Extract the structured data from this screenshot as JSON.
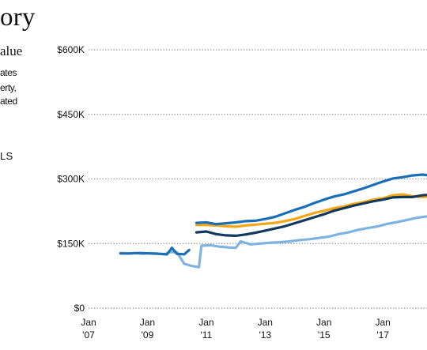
{
  "header": {
    "title_fragment": "ory",
    "subtitle_fragment": "alue",
    "description_lines": [
      "ates",
      "erty,",
      "ated"
    ],
    "legend_fragment": "LS"
  },
  "chart_data": {
    "type": "line",
    "title": "",
    "xlabel": "",
    "ylabel": "",
    "ylim": [
      0,
      600000
    ],
    "xlim": [
      "2007-01",
      "2018-07"
    ],
    "y_ticks": [
      {
        "value": 600000,
        "label": "$600K"
      },
      {
        "value": 450000,
        "label": "$450K"
      },
      {
        "value": 300000,
        "label": "$300K"
      },
      {
        "value": 150000,
        "label": "$150K"
      },
      {
        "value": 0,
        "label": "$0"
      }
    ],
    "x_ticks": [
      {
        "value": "2007-01",
        "month": "Jan",
        "year": "'07"
      },
      {
        "value": "2009-01",
        "month": "Jan",
        "year": "'09"
      },
      {
        "value": "2011-01",
        "month": "Jan",
        "year": "'11"
      },
      {
        "value": "2013-01",
        "month": "Jan",
        "year": "'13"
      },
      {
        "value": "2015-01",
        "month": "Jan",
        "year": "'15"
      },
      {
        "value": "2017-01",
        "month": "Jan",
        "year": "'17"
      }
    ],
    "grid": true,
    "series": [
      {
        "color": "#7fb3df",
        "points": [
          [
            "2008-02",
            128000
          ],
          [
            "2008-05",
            127000
          ],
          [
            "2008-08",
            128000
          ],
          [
            "2008-11",
            126000
          ],
          [
            "2009-02",
            128000
          ],
          [
            "2009-05",
            127000
          ],
          [
            "2009-08",
            125000
          ],
          [
            "2009-10",
            130000
          ],
          [
            "2010-01",
            130000
          ],
          [
            "2010-04",
            103000
          ],
          [
            "2010-07",
            98000
          ],
          [
            "2010-10",
            95000
          ],
          [
            "2010-11",
            145000
          ],
          [
            "2011-03",
            146000
          ],
          [
            "2011-06",
            143000
          ],
          [
            "2011-10",
            141000
          ],
          [
            "2012-01",
            140000
          ],
          [
            "2012-03",
            155000
          ],
          [
            "2012-07",
            148000
          ],
          [
            "2012-11",
            150000
          ],
          [
            "2013-03",
            152000
          ],
          [
            "2013-07",
            153000
          ],
          [
            "2013-11",
            155000
          ],
          [
            "2014-03",
            158000
          ],
          [
            "2014-07",
            160000
          ],
          [
            "2014-11",
            163000
          ],
          [
            "2015-03",
            166000
          ],
          [
            "2015-07",
            172000
          ],
          [
            "2015-11",
            176000
          ],
          [
            "2016-03",
            182000
          ],
          [
            "2016-07",
            186000
          ],
          [
            "2016-11",
            190000
          ],
          [
            "2017-03",
            196000
          ],
          [
            "2017-07",
            200000
          ],
          [
            "2017-11",
            205000
          ],
          [
            "2018-03",
            210000
          ],
          [
            "2018-07",
            213000
          ]
        ]
      },
      {
        "color": "#1f6fb5",
        "points": [
          [
            "2008-02",
            127000
          ],
          [
            "2008-06",
            127000
          ],
          [
            "2008-10",
            128000
          ],
          [
            "2009-02",
            127000
          ],
          [
            "2009-06",
            126000
          ],
          [
            "2009-09",
            125000
          ],
          [
            "2009-11",
            140000
          ],
          [
            "2010-01",
            126000
          ],
          [
            "2010-04",
            125000
          ],
          [
            "2010-06",
            135000
          ]
        ]
      },
      {
        "color": "#f3a712",
        "points": [
          [
            "2010-09",
            193000
          ],
          [
            "2011-01",
            193000
          ],
          [
            "2011-05",
            192000
          ],
          [
            "2011-09",
            190000
          ],
          [
            "2012-01",
            189000
          ],
          [
            "2012-05",
            192000
          ],
          [
            "2012-09",
            194000
          ],
          [
            "2013-01",
            196000
          ],
          [
            "2013-05",
            198000
          ],
          [
            "2013-09",
            202000
          ],
          [
            "2014-01",
            207000
          ],
          [
            "2014-05",
            214000
          ],
          [
            "2014-09",
            221000
          ],
          [
            "2015-01",
            226000
          ],
          [
            "2015-05",
            232000
          ],
          [
            "2015-09",
            236000
          ],
          [
            "2016-01",
            242000
          ],
          [
            "2016-05",
            246000
          ],
          [
            "2016-09",
            252000
          ],
          [
            "2017-01",
            255000
          ],
          [
            "2017-05",
            262000
          ],
          [
            "2017-09",
            264000
          ],
          [
            "2018-01",
            260000
          ],
          [
            "2018-05",
            258000
          ],
          [
            "2018-07",
            259000
          ]
        ]
      },
      {
        "color": "#1a6eb8",
        "points": [
          [
            "2010-09",
            198000
          ],
          [
            "2011-01",
            199000
          ],
          [
            "2011-05",
            195000
          ],
          [
            "2011-09",
            197000
          ],
          [
            "2012-01",
            199000
          ],
          [
            "2012-05",
            202000
          ],
          [
            "2012-09",
            203000
          ],
          [
            "2013-01",
            207000
          ],
          [
            "2013-05",
            212000
          ],
          [
            "2013-09",
            220000
          ],
          [
            "2014-01",
            228000
          ],
          [
            "2014-05",
            235000
          ],
          [
            "2014-09",
            244000
          ],
          [
            "2015-01",
            252000
          ],
          [
            "2015-05",
            259000
          ],
          [
            "2015-09",
            264000
          ],
          [
            "2016-01",
            271000
          ],
          [
            "2016-05",
            278000
          ],
          [
            "2016-09",
            286000
          ],
          [
            "2017-01",
            294000
          ],
          [
            "2017-05",
            301000
          ],
          [
            "2017-09",
            304000
          ],
          [
            "2018-01",
            308000
          ],
          [
            "2018-05",
            310000
          ],
          [
            "2018-07",
            309000
          ]
        ]
      },
      {
        "color": "#12385e",
        "points": [
          [
            "2010-09",
            176000
          ],
          [
            "2011-01",
            178000
          ],
          [
            "2011-05",
            172000
          ],
          [
            "2011-09",
            169000
          ],
          [
            "2012-01",
            168000
          ],
          [
            "2012-05",
            171000
          ],
          [
            "2012-09",
            175000
          ],
          [
            "2013-01",
            180000
          ],
          [
            "2013-05",
            185000
          ],
          [
            "2013-09",
            190000
          ],
          [
            "2014-01",
            197000
          ],
          [
            "2014-05",
            204000
          ],
          [
            "2014-09",
            211000
          ],
          [
            "2015-01",
            218000
          ],
          [
            "2015-05",
            226000
          ],
          [
            "2015-09",
            232000
          ],
          [
            "2016-01",
            238000
          ],
          [
            "2016-05",
            243000
          ],
          [
            "2016-09",
            248000
          ],
          [
            "2017-01",
            252000
          ],
          [
            "2017-05",
            257000
          ],
          [
            "2017-09",
            258000
          ],
          [
            "2018-01",
            258000
          ],
          [
            "2018-05",
            262000
          ],
          [
            "2018-07",
            263000
          ]
        ]
      }
    ]
  }
}
